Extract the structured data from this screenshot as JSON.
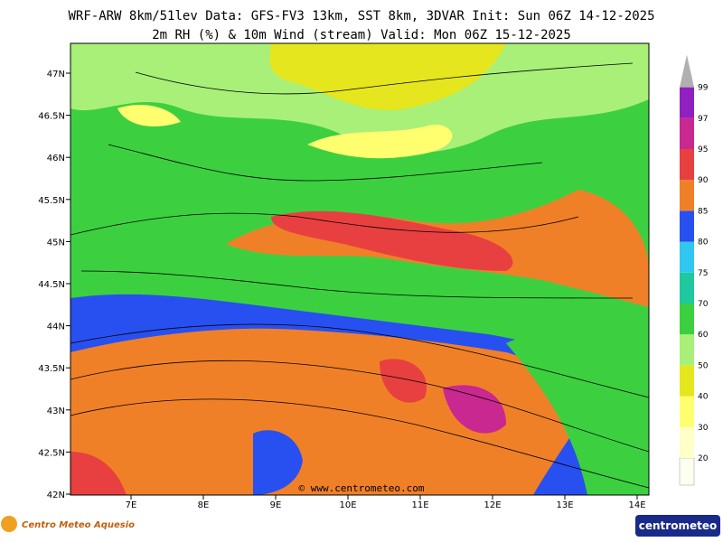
{
  "header": {
    "line1": "WRF-ARW 8km/51lev  Data: GFS-FV3 13km, SST 8km, 3DVAR  Init: Sun 06Z 14-12-2025",
    "line2": "2m RH (%) & 10m Wind (stream)  Valid: Mon 06Z 15-12-2025"
  },
  "axes": {
    "lat_labels": [
      "47N",
      "46.5N",
      "46N",
      "45.5N",
      "45N",
      "44.5N",
      "44N",
      "43.5N",
      "43N",
      "42.5N",
      "42N"
    ],
    "lon_labels": [
      "7E",
      "8E",
      "9E",
      "10E",
      "11E",
      "12E",
      "13E",
      "14E"
    ]
  },
  "colorbar": {
    "labels": [
      "20",
      "30",
      "40",
      "50",
      "60",
      "70",
      "75",
      "80",
      "85",
      "90",
      "95",
      "97",
      "99"
    ],
    "colors": [
      "#ffffc8",
      "#ffff70",
      "#e6e61e",
      "#a8f078",
      "#3cd040",
      "#20c8a0",
      "#30c8f0",
      "#2850f0",
      "#f08028",
      "#e84040",
      "#c82890",
      "#9020c0",
      "#b0b0b0"
    ]
  },
  "watermark": "© www.centrometeo.com",
  "footer": {
    "left_logo": "Centro Meteo Aquesio",
    "right_logo": "centrometeo"
  }
}
